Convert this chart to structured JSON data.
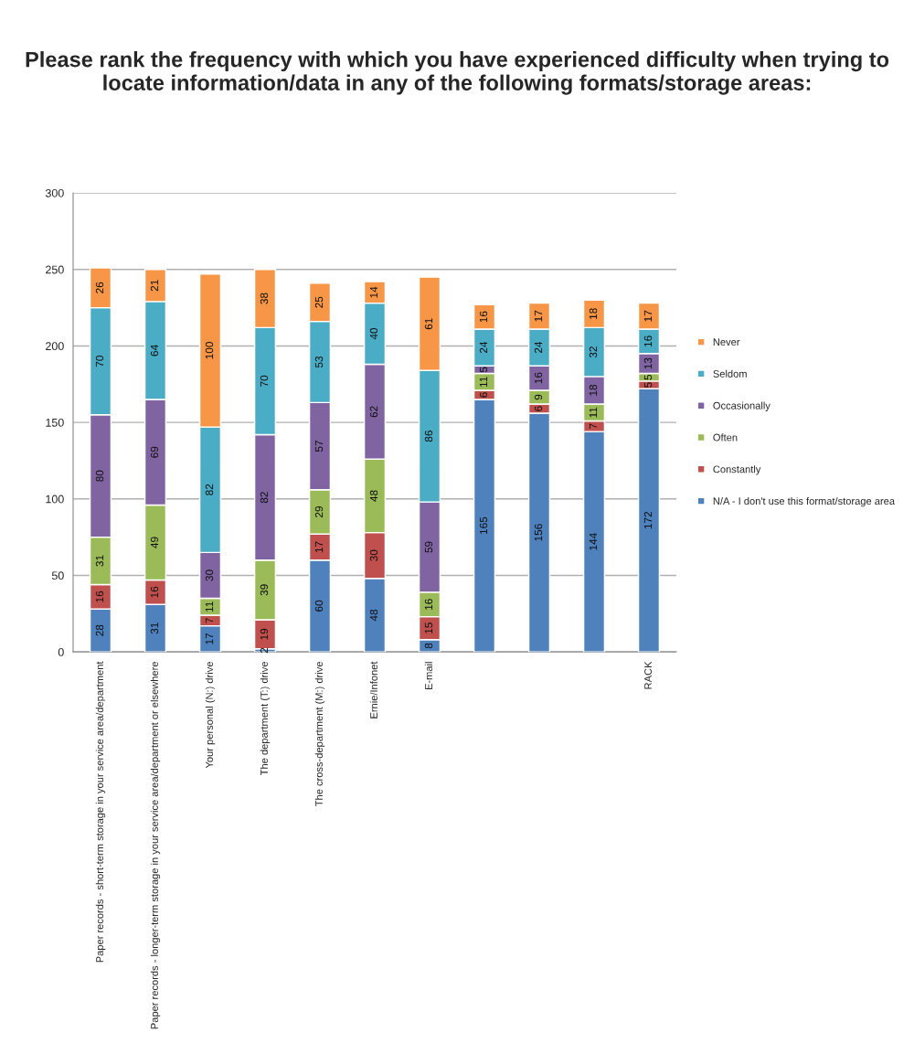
{
  "chart_data": {
    "type": "bar",
    "stacked": true,
    "title": "Please rank the frequency with which you have experienced difficulty when trying to locate information/data in any of the following formats/storage areas:",
    "categories": [
      "Paper records - short-term storage in your service area/department",
      "Paper records - longer-term storage in your service area/department or elsewhere",
      "Your personal (N:) drive",
      "The department (T:) drive",
      "The cross-department (M:) drive",
      "Ernie/Infonet",
      "E-mail",
      null,
      null,
      null,
      "RACK"
    ],
    "series": [
      {
        "name": "N/A - I don't use this format/storage area",
        "color": "#4f81bd",
        "values": [
          28,
          31,
          17,
          2,
          60,
          48,
          8,
          165,
          156,
          144,
          172
        ]
      },
      {
        "name": "Constantly",
        "color": "#c0504d",
        "values": [
          16,
          16,
          7,
          19,
          17,
          30,
          15,
          6,
          6,
          7,
          5
        ]
      },
      {
        "name": "Often",
        "color": "#9bbb59",
        "values": [
          31,
          49,
          11,
          39,
          29,
          48,
          16,
          11,
          9,
          11,
          5
        ]
      },
      {
        "name": "Occasionally",
        "color": "#8064a2",
        "values": [
          80,
          69,
          30,
          82,
          57,
          62,
          59,
          5,
          16,
          18,
          13
        ]
      },
      {
        "name": "Seldom",
        "color": "#4bacc6",
        "values": [
          70,
          64,
          82,
          70,
          53,
          40,
          86,
          24,
          24,
          32,
          16
        ]
      },
      {
        "name": "Never",
        "color": "#f79646",
        "values": [
          26,
          21,
          100,
          38,
          25,
          14,
          61,
          16,
          17,
          18,
          17
        ]
      }
    ],
    "ylim": [
      0,
      300
    ],
    "yticks": [
      0,
      50,
      100,
      150,
      200,
      250,
      300
    ],
    "grid": "y",
    "legend": "right",
    "data_labels": true
  }
}
